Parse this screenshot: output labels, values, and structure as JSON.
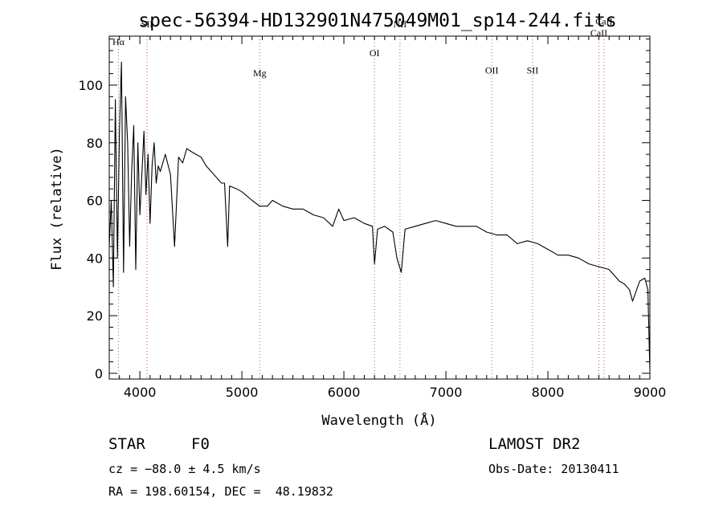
{
  "chart_data": {
    "type": "line",
    "title": "spec-56394-HD132901N475049M01_sp14-244.fits",
    "xlabel": "Wavelength (Å)",
    "ylabel": "Flux (relative)",
    "xlim": [
      3700,
      9000
    ],
    "ylim": [
      -2,
      117
    ],
    "x_ticks": [
      {
        "value": 4000,
        "label": "4000"
      },
      {
        "value": 5000,
        "label": "5000"
      },
      {
        "value": 6000,
        "label": "6000"
      },
      {
        "value": 7000,
        "label": "7000"
      },
      {
        "value": 8000,
        "label": "8000"
      },
      {
        "value": 9000,
        "label": "9000"
      }
    ],
    "y_ticks": [
      {
        "value": 0,
        "label": "0"
      },
      {
        "value": 20,
        "label": "20"
      },
      {
        "value": 40,
        "label": "40"
      },
      {
        "value": 60,
        "label": "60"
      },
      {
        "value": 80,
        "label": "80"
      },
      {
        "value": 100,
        "label": "100"
      }
    ],
    "grid": false,
    "line_color": "#000000",
    "marker_line_color": "#d05050",
    "spectral_lines": [
      {
        "label": "Hα",
        "wavelength": 3790,
        "label_y": 114
      },
      {
        "label": "SII",
        "wavelength": 4070,
        "label_y": 120
      },
      {
        "label": "Mg",
        "wavelength": 5175,
        "label_y": 103
      },
      {
        "label": "OI",
        "wavelength": 6300,
        "label_y": 110
      },
      {
        "label": "NII",
        "wavelength": 6550,
        "label_y": 120
      },
      {
        "label": "OII",
        "wavelength": 7450,
        "label_y": 104
      },
      {
        "label": "SII",
        "wavelength": 7850,
        "label_y": 104
      },
      {
        "label": "CaII",
        "wavelength": 8500,
        "label_y": 117
      },
      {
        "label": "CaII",
        "wavelength": 8550,
        "label_y": 121
      }
    ],
    "series": [
      {
        "x": [
          3700,
          3720,
          3740,
          3760,
          3780,
          3800,
          3820,
          3840,
          3860,
          3880,
          3900,
          3920,
          3940,
          3960,
          3980,
          4000,
          4020,
          4040,
          4060,
          4080,
          4100,
          4120,
          4140,
          4160,
          4180,
          4200,
          4250,
          4300,
          4340,
          4380,
          4420,
          4460,
          4500,
          4550,
          4600,
          4650,
          4700,
          4750,
          4800,
          4830,
          4861,
          4880,
          4950,
          5000,
          5100,
          5175,
          5250,
          5300,
          5400,
          5500,
          5600,
          5700,
          5800,
          5890,
          5950,
          6000,
          6100,
          6200,
          6280,
          6300,
          6330,
          6400,
          6480,
          6520,
          6563,
          6600,
          6700,
          6800,
          6900,
          7000,
          7100,
          7200,
          7300,
          7400,
          7500,
          7600,
          7700,
          7800,
          7900,
          8000,
          8100,
          8200,
          8300,
          8400,
          8500,
          8600,
          8650,
          8700,
          8750,
          8800,
          8830,
          8850,
          8900,
          8950,
          8980,
          8995,
          9000
        ],
        "y": [
          44,
          60,
          30,
          95,
          40,
          84,
          108,
          35,
          96,
          80,
          44,
          70,
          86,
          36,
          80,
          55,
          69,
          84,
          62,
          76,
          52,
          72,
          80,
          66,
          72,
          70,
          76,
          69,
          44,
          75,
          73,
          78,
          77,
          76,
          75,
          72,
          70,
          68,
          66,
          66,
          44,
          65,
          64,
          63,
          60,
          58,
          58,
          60,
          58,
          57,
          57,
          55,
          54,
          51,
          57,
          53,
          54,
          52,
          51,
          38,
          50,
          51,
          49,
          40,
          35,
          50,
          51,
          52,
          53,
          52,
          51,
          51,
          51,
          49,
          48,
          48,
          45,
          46,
          45,
          43,
          41,
          41,
          40,
          38,
          37,
          36,
          34,
          32,
          31,
          29,
          25,
          27,
          32,
          33,
          29,
          7,
          1
        ]
      }
    ]
  },
  "info": {
    "object_type": "STAR",
    "spectral_class": "F0",
    "survey": "LAMOST DR2",
    "redshift_text": "cz = −88.0 ± 4.5 km/s",
    "obs_date_text": "Obs-Date: 20130411",
    "coords_text": "RA = 198.60154, DEC =  48.19832"
  }
}
